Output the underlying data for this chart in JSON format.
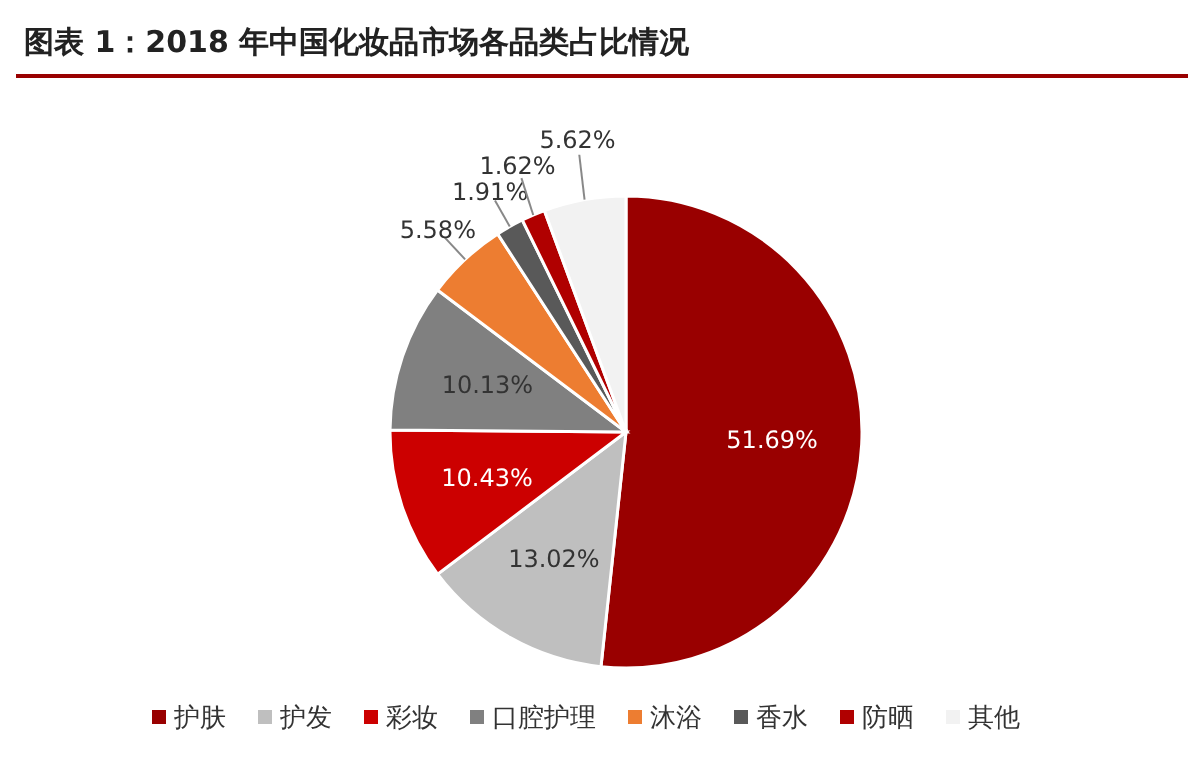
{
  "chart_data": {
    "type": "pie",
    "title": "图表 1：2018 年中国化妆品市场各品类占比情况",
    "categories": [
      "护肤",
      "护发",
      "彩妆",
      "口腔护理",
      "沐浴",
      "香水",
      "防晒",
      "其他"
    ],
    "values": [
      51.69,
      13.02,
      10.43,
      10.13,
      5.58,
      1.91,
      1.62,
      5.62
    ],
    "value_labels": [
      "51.69%",
      "13.02%",
      "10.43%",
      "10.13%",
      "5.58%",
      "1.91%",
      "1.62%",
      "5.62%"
    ],
    "colors": [
      "#990000",
      "#bfbfbf",
      "#cc0000",
      "#808080",
      "#ed7d31",
      "#595959",
      "#b00000",
      "#f2f2f2"
    ],
    "legend": "bottom"
  }
}
